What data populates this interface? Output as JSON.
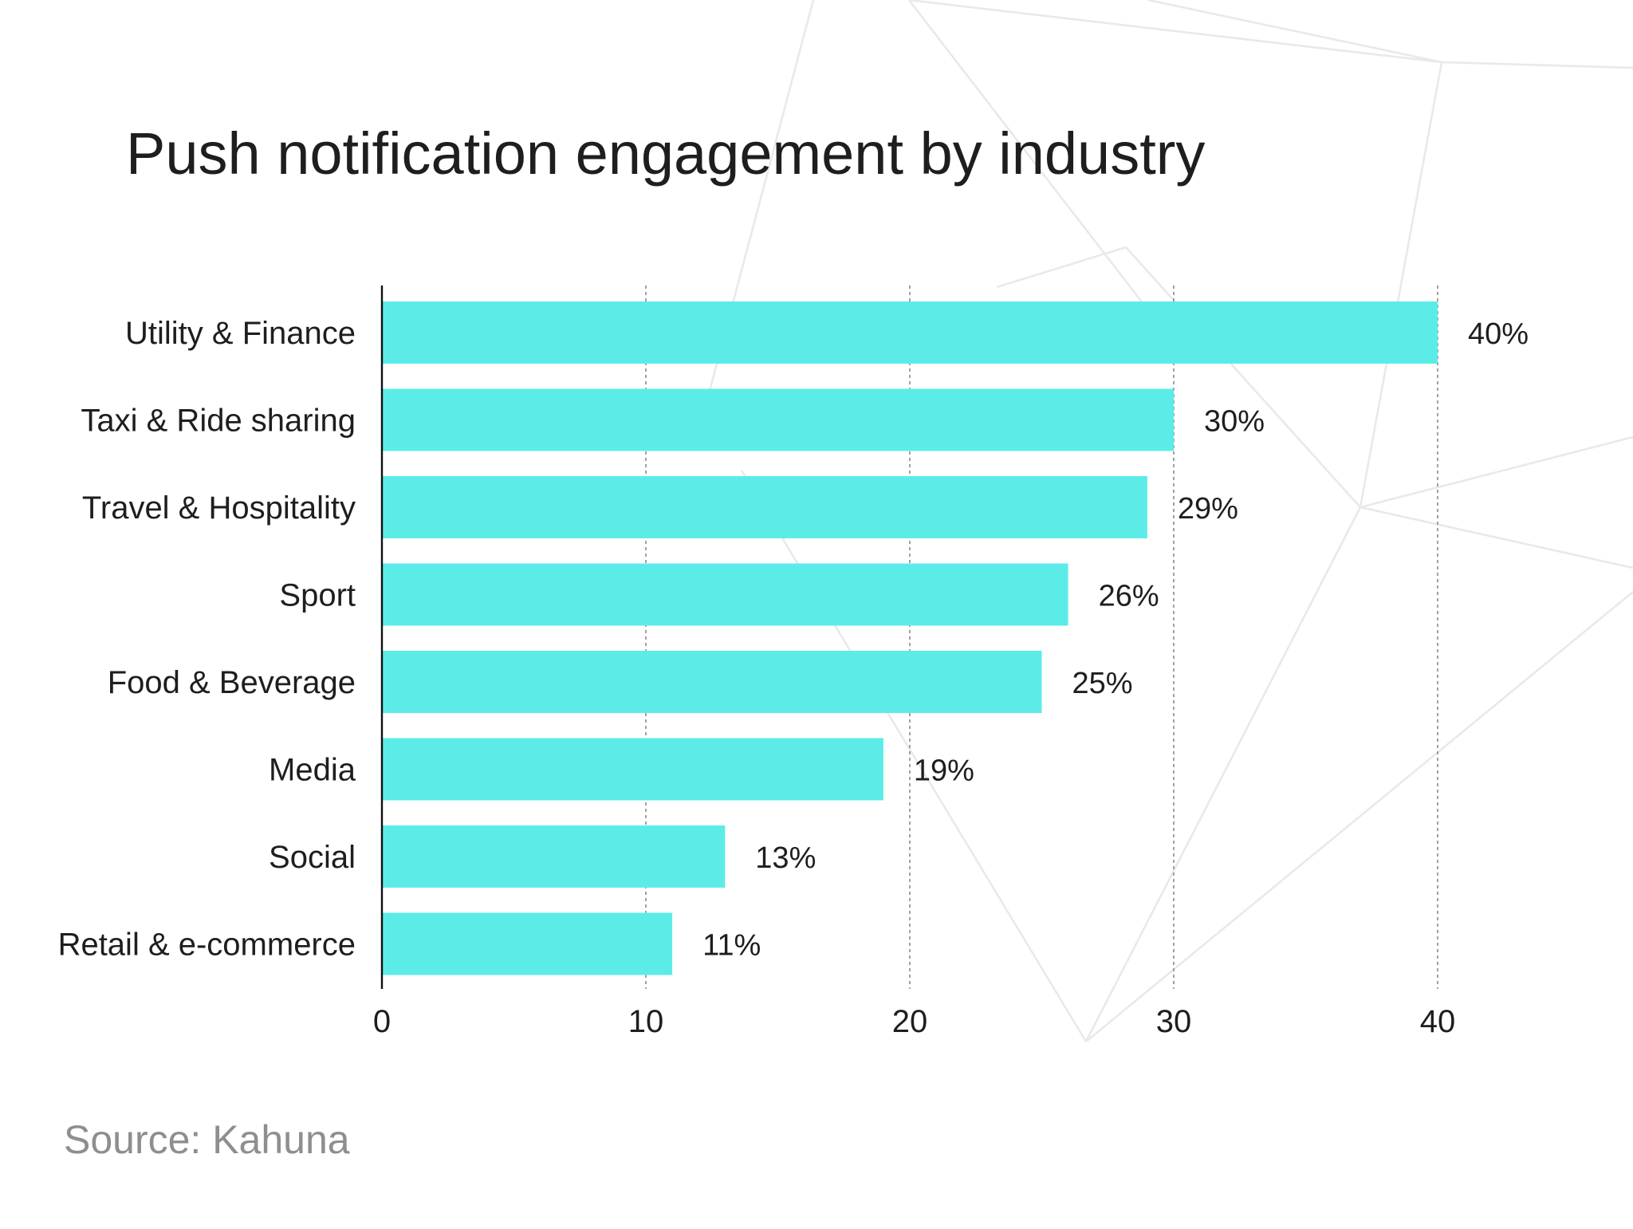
{
  "title": "Push notification engagement by industry",
  "source": "Source: Kahuna",
  "colors": {
    "bar": "#5cece8",
    "axis": "#111111",
    "grid": "#8a8a8a",
    "background_lines": "#e9e9e9"
  },
  "chart_data": {
    "type": "bar",
    "orientation": "horizontal",
    "title": "Push notification engagement by industry",
    "categories": [
      "Utility & Finance",
      "Taxi & Ride sharing",
      "Travel & Hospitality",
      "Sport",
      "Food & Beverage",
      "Media",
      "Social",
      "Retail & e-commerce"
    ],
    "values": [
      40,
      30,
      29,
      26,
      25,
      19,
      13,
      11
    ],
    "value_labels": [
      "40%",
      "30%",
      "29%",
      "26%",
      "25%",
      "19%",
      "13%",
      "11%"
    ],
    "xlim": [
      0,
      40
    ],
    "xticks": [
      0,
      10,
      20,
      30,
      40
    ],
    "xtick_labels": [
      "0",
      "10",
      "20",
      "30",
      "40"
    ],
    "xlabel": "",
    "ylabel": "",
    "grid": "vertical dashed",
    "legend": "none"
  }
}
